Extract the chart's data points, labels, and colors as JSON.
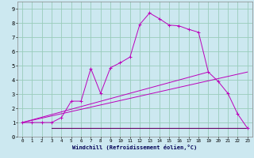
{
  "title": "",
  "xlabel": "Windchill (Refroidissement éolien,°C)",
  "bg_color": "#cce8f0",
  "grid_color": "#99ccbb",
  "line_color": "#bb00bb",
  "line_color2": "#660066",
  "xlim": [
    -0.5,
    23.5
  ],
  "ylim": [
    0,
    9.5
  ],
  "xticks": [
    0,
    1,
    2,
    3,
    4,
    5,
    6,
    7,
    8,
    9,
    10,
    11,
    12,
    13,
    14,
    15,
    16,
    17,
    18,
    19,
    20,
    21,
    22,
    23
  ],
  "yticks": [
    0,
    1,
    2,
    3,
    4,
    5,
    6,
    7,
    8,
    9
  ],
  "curve1_x": [
    0,
    1,
    2,
    3,
    4,
    5,
    6,
    7,
    8,
    9,
    10,
    11,
    12,
    13,
    14,
    15,
    16,
    17,
    18,
    19,
    20,
    21,
    22,
    23
  ],
  "curve1_y": [
    1.0,
    1.0,
    1.0,
    1.0,
    1.35,
    2.5,
    2.5,
    4.8,
    3.05,
    4.85,
    5.2,
    5.6,
    7.9,
    8.7,
    8.3,
    7.85,
    7.8,
    7.55,
    7.35,
    4.55,
    3.9,
    3.05,
    1.6,
    0.6
  ],
  "curve2_x": [
    0,
    23
  ],
  "curve2_y": [
    1.0,
    4.55
  ],
  "curve3_x": [
    3,
    23
  ],
  "curve3_y": [
    0.62,
    0.62
  ],
  "curve4_x": [
    0,
    19
  ],
  "curve4_y": [
    1.0,
    4.55
  ]
}
